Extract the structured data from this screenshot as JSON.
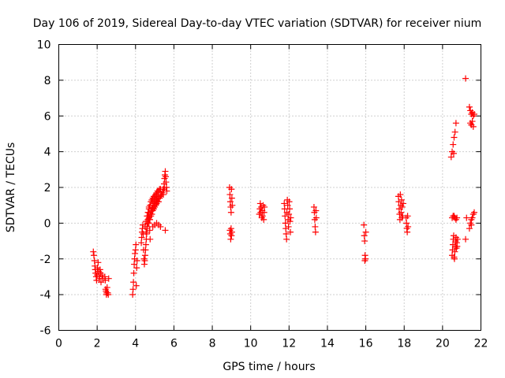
{
  "chart_data": {
    "type": "scatter",
    "title": "Day 106 of 2019, Sidereal Day-to-day VTEC variation (SDTVAR) for receiver nium",
    "xlabel": "GPS time / hours",
    "ylabel": "SDTVAR / TECUs",
    "xlim": [
      0,
      22
    ],
    "ylim": [
      -6,
      10
    ],
    "xticks": [
      0,
      2,
      4,
      6,
      8,
      10,
      12,
      14,
      16,
      18,
      20,
      22
    ],
    "yticks": [
      -6,
      -4,
      -2,
      0,
      2,
      4,
      6,
      8,
      10
    ],
    "grid": true,
    "marker": "+",
    "color": "#ff0000",
    "series": [
      {
        "name": "SDTVAR",
        "points": [
          [
            1.8,
            -1.6
          ],
          [
            1.83,
            -1.8
          ],
          [
            1.86,
            -2.1
          ],
          [
            1.88,
            -2.4
          ],
          [
            1.9,
            -2.6
          ],
          [
            1.92,
            -2.8
          ],
          [
            1.95,
            -3.0
          ],
          [
            1.97,
            -3.2
          ],
          [
            2.0,
            -2.9
          ],
          [
            2.02,
            -2.5
          ],
          [
            2.05,
            -2.2
          ],
          [
            2.07,
            -2.7
          ],
          [
            2.1,
            -3.0
          ],
          [
            2.12,
            -3.1
          ],
          [
            2.15,
            -2.6
          ],
          [
            2.18,
            -2.8
          ],
          [
            2.2,
            -3.3
          ],
          [
            2.25,
            -2.9
          ],
          [
            2.3,
            -3.1
          ],
          [
            2.4,
            -3.0
          ],
          [
            2.42,
            -3.2
          ],
          [
            2.44,
            -3.7
          ],
          [
            2.46,
            -3.8
          ],
          [
            2.48,
            -4.0
          ],
          [
            2.5,
            -3.9
          ],
          [
            2.52,
            -3.6
          ],
          [
            2.55,
            -3.9
          ],
          [
            2.58,
            -4.0
          ],
          [
            2.6,
            -3.1
          ],
          [
            3.85,
            -4.0
          ],
          [
            3.87,
            -3.7
          ],
          [
            3.89,
            -3.3
          ],
          [
            3.91,
            -2.8
          ],
          [
            3.93,
            -2.3
          ],
          [
            3.95,
            -2.0
          ],
          [
            3.97,
            -1.7
          ],
          [
            4.0,
            -1.5
          ],
          [
            4.02,
            -1.2
          ],
          [
            4.04,
            -3.5
          ],
          [
            4.06,
            -2.5
          ],
          [
            4.08,
            -2.1
          ],
          [
            4.3,
            -1.1
          ],
          [
            4.32,
            -0.8
          ],
          [
            4.34,
            -0.5
          ],
          [
            4.36,
            -0.3
          ],
          [
            4.38,
            -0.1
          ],
          [
            4.4,
            -0.6
          ],
          [
            4.42,
            -1.5
          ],
          [
            4.44,
            -2.0
          ],
          [
            4.46,
            -2.3
          ],
          [
            4.48,
            -2.1
          ],
          [
            4.5,
            -1.8
          ],
          [
            4.52,
            -1.5
          ],
          [
            4.54,
            -1.2
          ],
          [
            4.56,
            -0.9
          ],
          [
            4.58,
            -0.6
          ],
          [
            4.6,
            -0.3
          ],
          [
            4.62,
            0.0
          ],
          [
            4.64,
            0.2
          ],
          [
            4.66,
            0.4
          ],
          [
            4.68,
            0.6
          ],
          [
            4.7,
            0.8
          ],
          [
            4.72,
            0.2
          ],
          [
            4.74,
            -0.4
          ],
          [
            4.76,
            -0.9
          ],
          [
            4.5,
            -0.2
          ],
          [
            4.55,
            0.1
          ],
          [
            4.6,
            0.4
          ],
          [
            4.65,
            0.6
          ],
          [
            4.7,
            0.9
          ],
          [
            4.75,
            1.0
          ],
          [
            4.8,
            1.2
          ],
          [
            4.85,
            1.3
          ],
          [
            4.9,
            1.4
          ],
          [
            4.95,
            1.5
          ],
          [
            5.0,
            1.5
          ],
          [
            5.05,
            1.6
          ],
          [
            5.1,
            1.7
          ],
          [
            5.15,
            1.8
          ],
          [
            5.2,
            1.8
          ],
          [
            5.25,
            1.9
          ],
          [
            5.3,
            1.9
          ],
          [
            4.55,
            -0.5
          ],
          [
            4.6,
            -0.2
          ],
          [
            4.65,
            0.0
          ],
          [
            4.7,
            0.3
          ],
          [
            4.75,
            0.5
          ],
          [
            4.8,
            0.7
          ],
          [
            4.85,
            0.8
          ],
          [
            4.9,
            1.0
          ],
          [
            4.95,
            1.1
          ],
          [
            5.0,
            1.2
          ],
          [
            5.05,
            1.3
          ],
          [
            5.1,
            1.3
          ],
          [
            5.15,
            1.4
          ],
          [
            5.2,
            1.5
          ],
          [
            4.7,
            0.0
          ],
          [
            4.75,
            0.2
          ],
          [
            4.8,
            0.4
          ],
          [
            4.85,
            0.5
          ],
          [
            4.9,
            0.7
          ],
          [
            4.95,
            0.8
          ],
          [
            5.0,
            0.9
          ],
          [
            5.05,
            1.0
          ],
          [
            5.1,
            1.1
          ],
          [
            5.15,
            1.2
          ],
          [
            5.2,
            1.2
          ],
          [
            5.25,
            1.4
          ],
          [
            5.3,
            1.5
          ],
          [
            5.35,
            1.6
          ],
          [
            5.4,
            1.7
          ],
          [
            5.45,
            1.9
          ],
          [
            5.5,
            2.0
          ],
          [
            4.9,
            -0.2
          ],
          [
            5.0,
            -0.1
          ],
          [
            5.1,
            0.0
          ],
          [
            5.2,
            -0.1
          ],
          [
            5.3,
            -0.2
          ],
          [
            5.45,
            1.6
          ],
          [
            5.47,
            1.9
          ],
          [
            5.49,
            2.2
          ],
          [
            5.51,
            2.5
          ],
          [
            5.53,
            2.7
          ],
          [
            5.55,
            2.9
          ],
          [
            5.57,
            2.6
          ],
          [
            5.59,
            2.3
          ],
          [
            5.61,
            2.0
          ],
          [
            5.63,
            1.8
          ],
          [
            5.55,
            -0.4
          ],
          [
            8.9,
            2.0
          ],
          [
            8.92,
            1.6
          ],
          [
            8.94,
            1.2
          ],
          [
            8.96,
            0.9
          ],
          [
            8.98,
            0.6
          ],
          [
            9.0,
            1.9
          ],
          [
            9.02,
            1.4
          ],
          [
            9.04,
            1.0
          ],
          [
            8.92,
            -0.4
          ],
          [
            8.94,
            -0.6
          ],
          [
            8.96,
            -0.9
          ],
          [
            8.98,
            -0.3
          ],
          [
            9.0,
            -0.7
          ],
          [
            9.02,
            -0.5
          ],
          [
            10.45,
            0.5
          ],
          [
            10.48,
            0.8
          ],
          [
            10.5,
            1.1
          ],
          [
            10.52,
            0.6
          ],
          [
            10.55,
            0.9
          ],
          [
            10.58,
            0.3
          ],
          [
            10.6,
            0.7
          ],
          [
            10.62,
            0.4
          ],
          [
            10.65,
            1.0
          ],
          [
            10.68,
            0.2
          ],
          [
            10.7,
            0.6
          ],
          [
            10.72,
            0.9
          ],
          [
            11.75,
            1.1
          ],
          [
            11.77,
            0.8
          ],
          [
            11.79,
            0.4
          ],
          [
            11.81,
            0.0
          ],
          [
            11.83,
            -0.3
          ],
          [
            11.85,
            -0.6
          ],
          [
            11.87,
            -0.9
          ],
          [
            11.89,
            0.6
          ],
          [
            11.91,
            1.3
          ],
          [
            11.93,
            1.0
          ],
          [
            11.95,
            0.2
          ],
          [
            11.97,
            -0.2
          ],
          [
            11.99,
            0.5
          ],
          [
            12.01,
            1.2
          ],
          [
            12.03,
            0.8
          ],
          [
            12.05,
            0.1
          ],
          [
            12.07,
            -0.5
          ],
          [
            12.09,
            0.3
          ],
          [
            13.3,
            0.9
          ],
          [
            13.32,
            0.6
          ],
          [
            13.34,
            0.2
          ],
          [
            13.36,
            -0.2
          ],
          [
            13.38,
            -0.5
          ],
          [
            13.4,
            0.7
          ],
          [
            13.42,
            0.3
          ],
          [
            15.9,
            -0.1
          ],
          [
            15.92,
            -0.7
          ],
          [
            15.94,
            -1.0
          ],
          [
            15.96,
            -1.8
          ],
          [
            15.98,
            -2.0
          ],
          [
            16.0,
            -0.5
          ],
          [
            15.95,
            -2.1
          ],
          [
            17.7,
            1.5
          ],
          [
            17.72,
            1.2
          ],
          [
            17.74,
            0.8
          ],
          [
            17.76,
            0.5
          ],
          [
            17.78,
            0.2
          ],
          [
            17.8,
            1.6
          ],
          [
            17.82,
            1.0
          ],
          [
            17.84,
            0.6
          ],
          [
            17.86,
            1.3
          ],
          [
            17.88,
            0.3
          ],
          [
            17.9,
            0.9
          ],
          [
            17.92,
            0.4
          ],
          [
            17.95,
            1.1
          ],
          [
            18.1,
            0.3
          ],
          [
            18.12,
            0.0
          ],
          [
            18.14,
            -0.3
          ],
          [
            18.16,
            -0.5
          ],
          [
            18.18,
            0.4
          ],
          [
            18.2,
            -0.2
          ],
          [
            20.45,
            3.7
          ],
          [
            20.5,
            4.0
          ],
          [
            20.55,
            4.4
          ],
          [
            20.6,
            4.8
          ],
          [
            20.65,
            5.1
          ],
          [
            20.7,
            5.6
          ],
          [
            20.58,
            3.9
          ],
          [
            20.5,
            0.3
          ],
          [
            20.55,
            0.4
          ],
          [
            20.6,
            0.4
          ],
          [
            20.65,
            0.3
          ],
          [
            20.7,
            0.2
          ],
          [
            20.75,
            0.3
          ],
          [
            20.5,
            -1.8
          ],
          [
            20.52,
            -1.5
          ],
          [
            20.54,
            -1.2
          ],
          [
            20.56,
            -0.9
          ],
          [
            20.58,
            -0.7
          ],
          [
            20.6,
            -1.9
          ],
          [
            20.62,
            -2.0
          ],
          [
            20.64,
            -1.6
          ],
          [
            20.66,
            -1.3
          ],
          [
            20.68,
            -1.0
          ],
          [
            20.7,
            -0.8
          ],
          [
            20.72,
            -1.4
          ],
          [
            20.74,
            -1.1
          ],
          [
            20.76,
            -1.3
          ],
          [
            20.78,
            -0.9
          ],
          [
            21.2,
            -0.9
          ],
          [
            21.25,
            0.3
          ],
          [
            21.2,
            8.1
          ],
          [
            21.4,
            6.5
          ],
          [
            21.45,
            6.3
          ],
          [
            21.5,
            6.1
          ],
          [
            21.55,
            6.2
          ],
          [
            21.6,
            6.0
          ],
          [
            21.65,
            6.1
          ],
          [
            21.45,
            5.6
          ],
          [
            21.5,
            5.5
          ],
          [
            21.55,
            5.7
          ],
          [
            21.6,
            5.4
          ],
          [
            21.4,
            -0.3
          ],
          [
            21.45,
            0.0
          ],
          [
            21.5,
            0.2
          ],
          [
            21.55,
            0.3
          ],
          [
            21.6,
            0.5
          ],
          [
            21.65,
            0.6
          ],
          [
            21.5,
            -0.1
          ]
        ]
      }
    ]
  }
}
